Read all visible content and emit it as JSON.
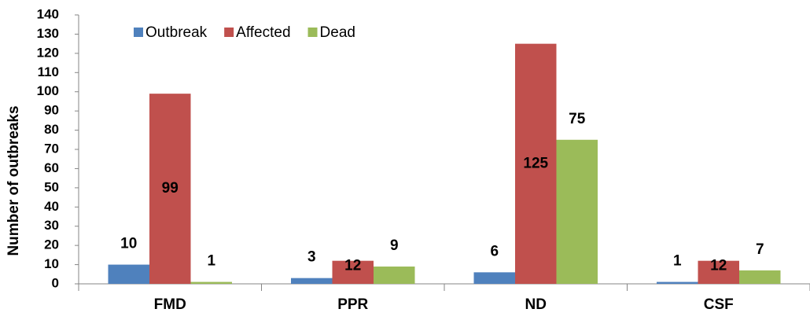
{
  "chart_data": {
    "type": "bar",
    "y_label": "Number of outbreaks",
    "categories": [
      "FMD",
      "PPR",
      "ND",
      "CSF"
    ],
    "series": [
      {
        "name": "Outbreak",
        "color": "#4f81bd",
        "values": [
          10,
          3,
          6,
          1
        ]
      },
      {
        "name": "Affected",
        "color": "#c0504d",
        "values": [
          99,
          12,
          125,
          12
        ]
      },
      {
        "name": "Dead",
        "color": "#9bbb59",
        "values": [
          1,
          9,
          75,
          7
        ]
      }
    ],
    "ylim": [
      0,
      140
    ],
    "yticks": [
      0,
      10,
      20,
      30,
      40,
      50,
      60,
      70,
      80,
      90,
      100,
      110,
      120,
      130,
      140
    ],
    "legend": "top",
    "grid": false
  }
}
